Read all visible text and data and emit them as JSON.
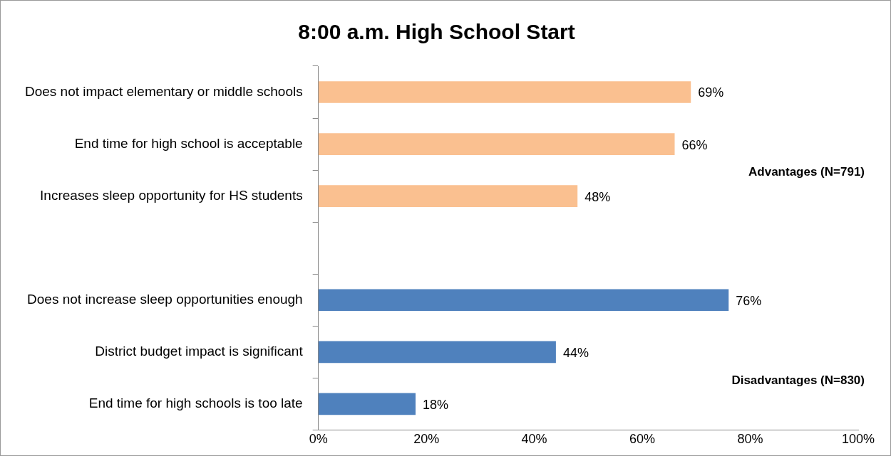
{
  "chart_data": {
    "type": "bar",
    "orientation": "horizontal",
    "stacked": true,
    "title": "8:00 a.m. High School Start",
    "categories": [
      "Does not impact elementary or middle schools",
      "End time for high school is acceptable",
      "Increases sleep opportunity for HS students",
      null,
      "Does not increase sleep opportunities enough",
      "District budget impact is significant",
      "End time for high schools is too late"
    ],
    "series": [
      {
        "name": "Advantages (N=791)",
        "color": "#fac090",
        "values": [
          69,
          66,
          48,
          null,
          null,
          null,
          null
        ]
      },
      {
        "name": "Disadvantages (N=830)",
        "color": "#4f81bd",
        "values": [
          null,
          null,
          null,
          null,
          76,
          44,
          18
        ]
      }
    ],
    "xlim": [
      0,
      100
    ],
    "xticks": [
      {
        "value": 0,
        "label": "0%"
      },
      {
        "value": 20,
        "label": "20%"
      },
      {
        "value": 40,
        "label": "40%"
      },
      {
        "value": 60,
        "label": "60%"
      },
      {
        "value": 80,
        "label": "80%"
      },
      {
        "value": 100,
        "label": "100%"
      }
    ],
    "value_labels": [
      [
        "69%",
        "66%",
        "48%",
        null,
        null,
        null,
        null
      ],
      [
        null,
        null,
        null,
        null,
        "76%",
        "44%",
        "18%"
      ]
    ],
    "grid": false,
    "legend": false
  }
}
